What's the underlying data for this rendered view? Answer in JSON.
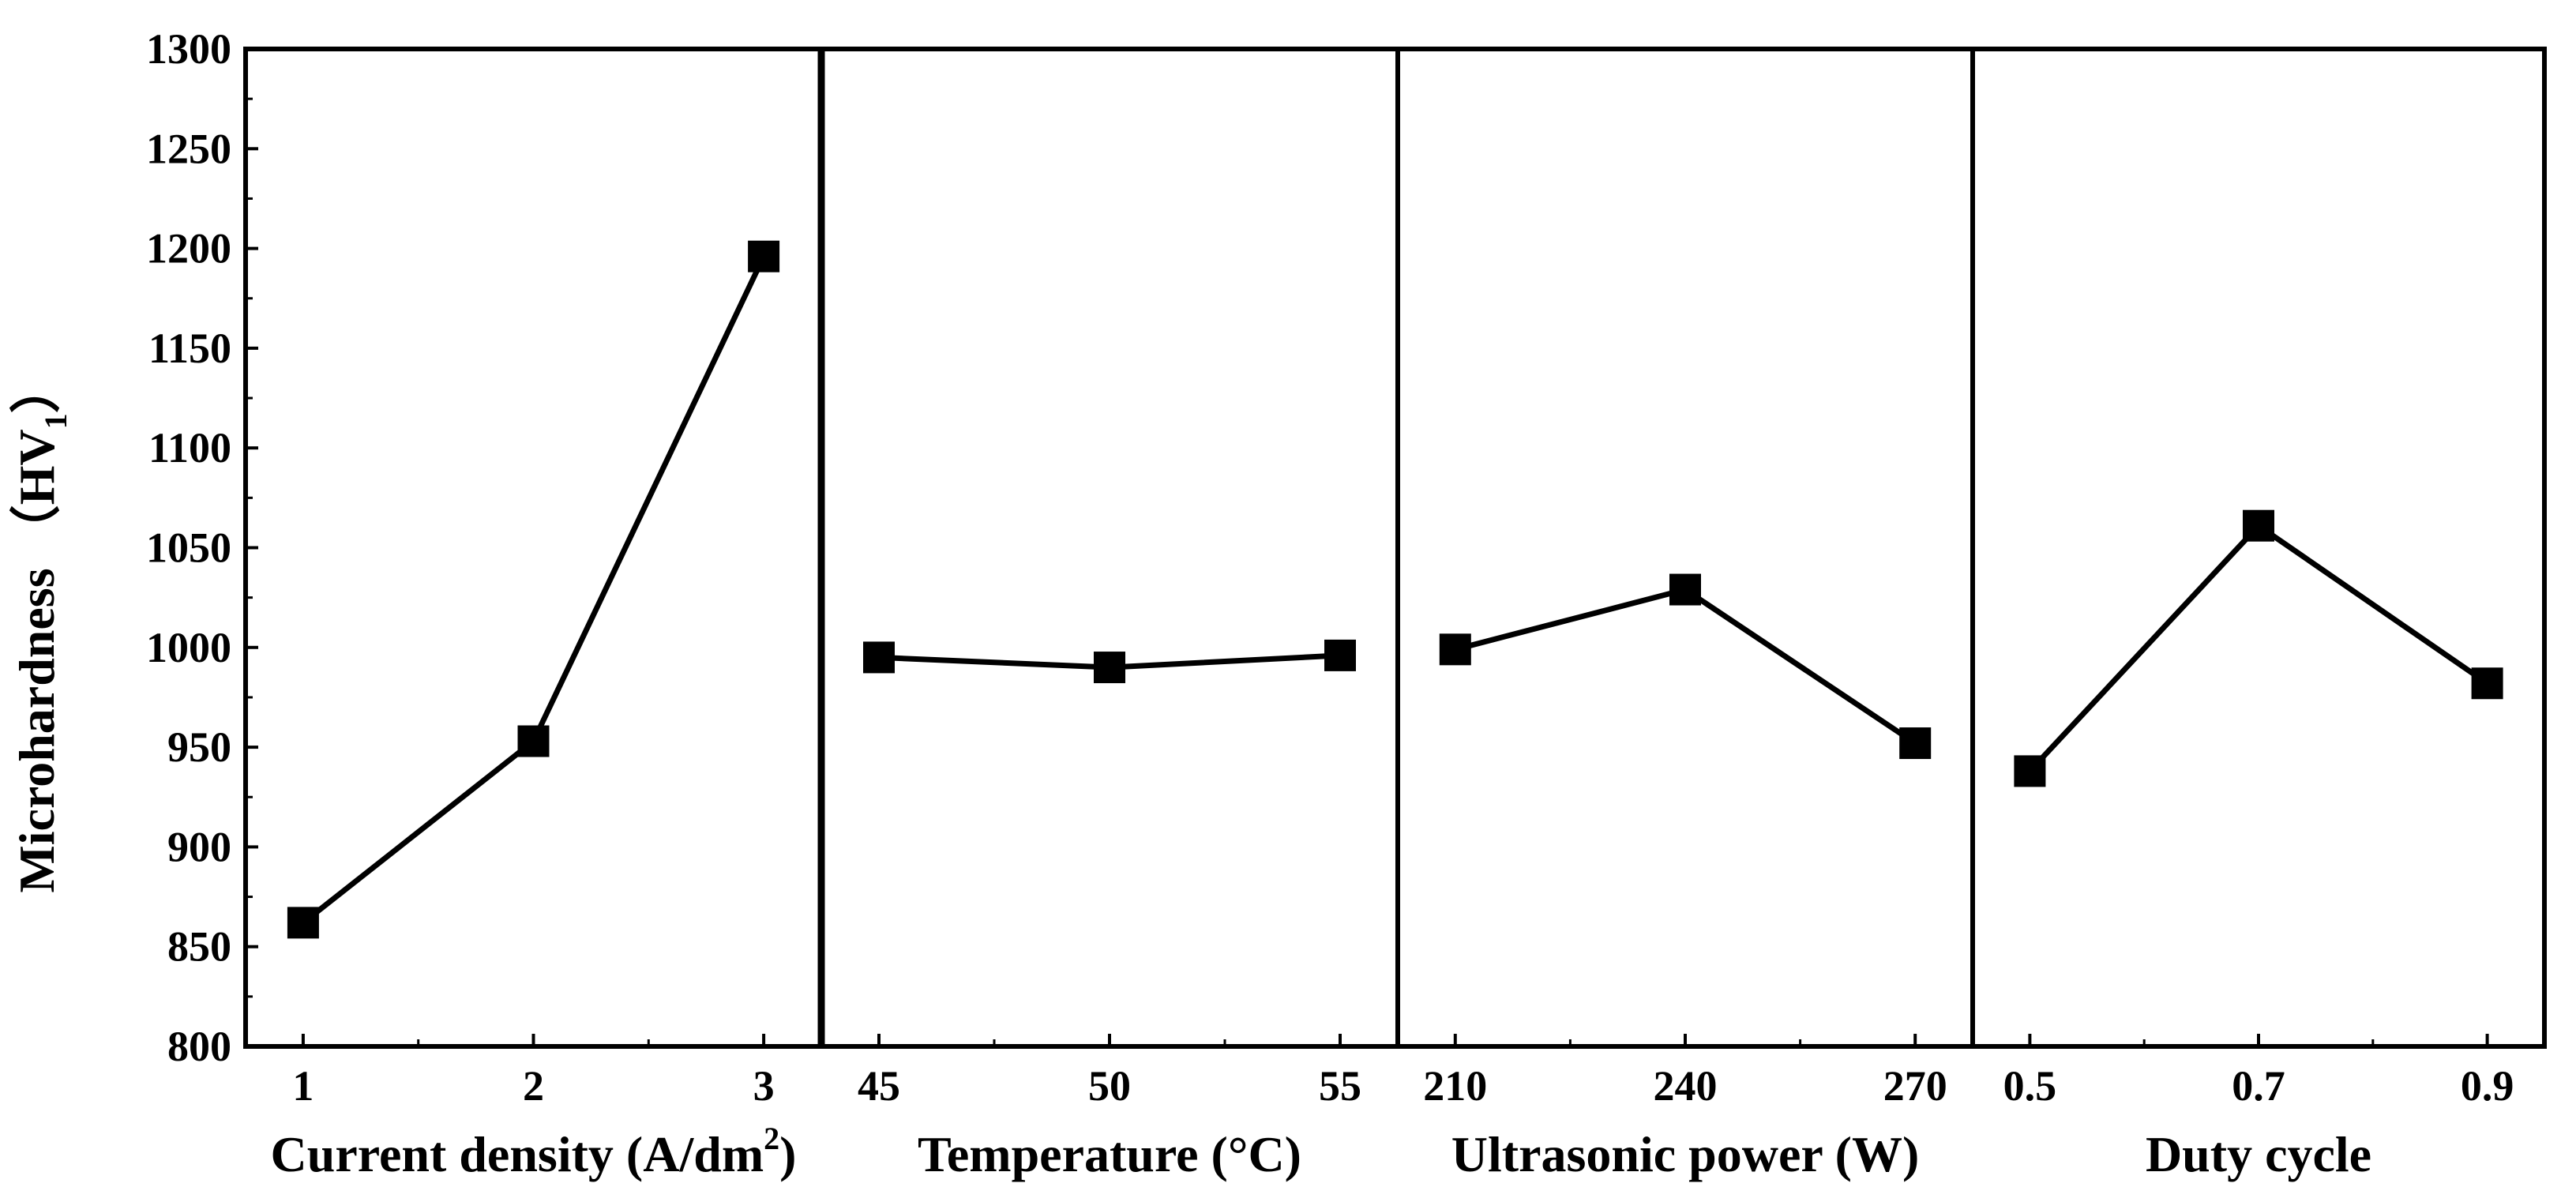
{
  "chart_data": {
    "type": "line",
    "title": "",
    "ylabel": {
      "main": "Microhardness （HV",
      "subscript": "1",
      "close": "）"
    },
    "ylim": [
      800,
      1300
    ],
    "yticks": [
      "800",
      "850",
      "900",
      "950",
      "1000",
      "1050",
      "1100",
      "1150",
      "1200",
      "1250",
      "1300"
    ],
    "grid": false,
    "legend": "none",
    "marker": "square",
    "panels": [
      {
        "xlabel": {
          "main": "Current density (A/dm",
          "superscript": "2",
          "close": ")"
        },
        "categories": [
          "1",
          "2",
          "3"
        ],
        "values": [
          862,
          953,
          1196
        ]
      },
      {
        "xlabel": {
          "main": "Temperature (°C)"
        },
        "categories": [
          "45",
          "50",
          "55"
        ],
        "values": [
          995,
          990,
          996
        ]
      },
      {
        "xlabel": {
          "main": "Ultrasonic power (W)"
        },
        "categories": [
          "210",
          "240",
          "270"
        ],
        "values": [
          999,
          1029,
          952
        ]
      },
      {
        "xlabel": {
          "main": "Duty cycle"
        },
        "categories": [
          "0.5",
          "0.7",
          "0.9"
        ],
        "values": [
          938,
          1061,
          982
        ]
      }
    ]
  }
}
